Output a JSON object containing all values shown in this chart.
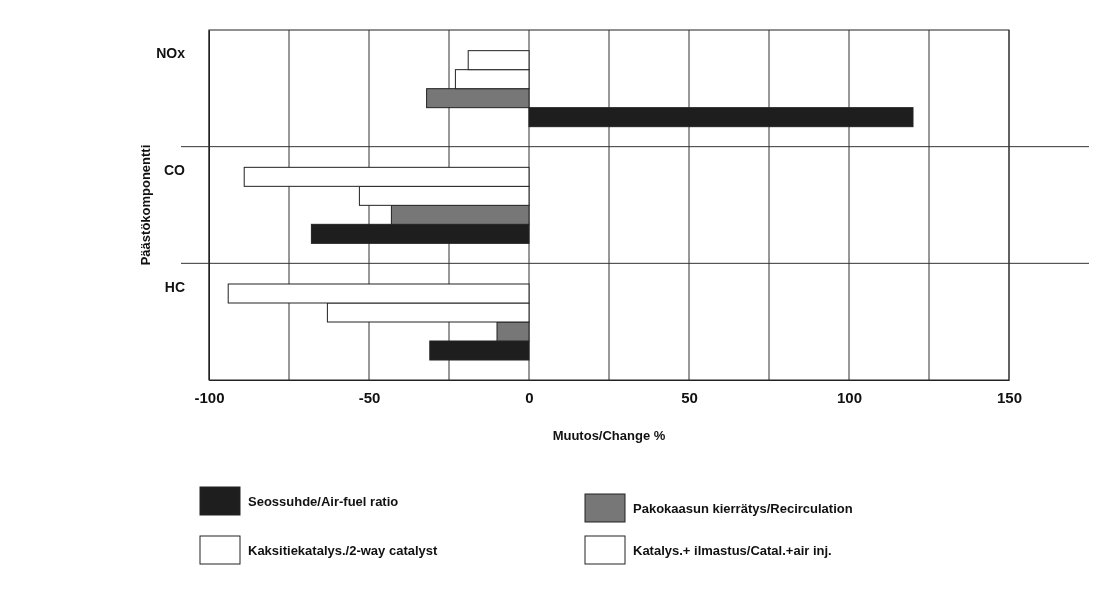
{
  "chart_data": {
    "type": "bar",
    "orientation": "horizontal",
    "xlabel": "Muutos/Change %",
    "ylabel": "Päästökomponentti",
    "categories": [
      "NOx",
      "CO",
      "HC"
    ],
    "xlim": [
      -100,
      150
    ],
    "xticks": [
      -100,
      {
        "value": -75,
        "label": null
      },
      -50,
      {
        "value": -25,
        "label": null
      },
      0,
      {
        "value": 25,
        "label": null
      },
      50,
      {
        "value": 75,
        "label": null
      },
      100,
      {
        "value": 125,
        "label": null
      },
      150
    ],
    "grid": true,
    "legend": "bottom",
    "series": [
      {
        "name": "Seossuhde/Air-fuel ratio",
        "color": "#1e1e1e",
        "values": [
          120,
          -68,
          -31
        ]
      },
      {
        "name": "Pakokaasun kierrätys/Recirculation",
        "color": "#777777",
        "values": [
          -32,
          -43,
          -10
        ]
      },
      {
        "name": "Kaksitiekatalys./2-way catalyst",
        "color": "#ffffff",
        "values": [
          -23,
          -53,
          -63
        ]
      },
      {
        "name": "Katalys.+ ilmastus/Catal.+air inj.",
        "color": "#ffffff",
        "values": [
          -19,
          -89,
          -94
        ]
      }
    ]
  }
}
